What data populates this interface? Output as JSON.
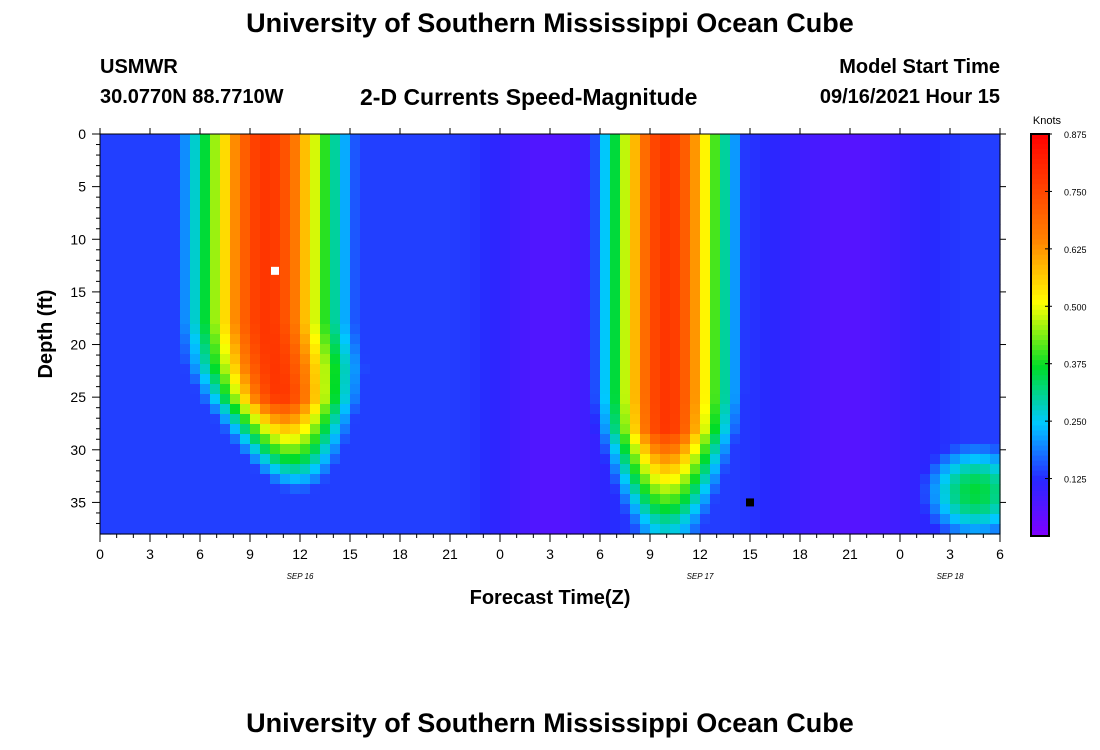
{
  "page": {
    "title_top": "University of Southern Mississippi Ocean Cube",
    "title_bottom": "University of Southern Mississippi Ocean Cube",
    "station": "USMWR",
    "coords": "30.0770N  88.7710W",
    "plot_title": "2-D Currents Speed-Magnitude",
    "start_label": "Model Start Time",
    "start_value": "09/16/2021 Hour 15"
  },
  "chart_data": {
    "type": "heatmap",
    "xlabel": "Forecast Time(Z)",
    "ylabel": "Depth (ft)",
    "x_tick_labels": [
      "0",
      "3",
      "6",
      "9",
      "12",
      "15",
      "18",
      "21",
      "0",
      "3",
      "6",
      "9",
      "12",
      "15",
      "18",
      "21",
      "0",
      "3",
      "6"
    ],
    "x_range_hours": [
      0,
      54
    ],
    "date_labels": [
      {
        "label": "SEP 16",
        "hour": 12
      },
      {
        "label": "SEP 17",
        "hour": 36
      },
      {
        "label": "SEP 18",
        "hour": 51
      }
    ],
    "y_ticks": [
      0,
      5,
      10,
      15,
      20,
      25,
      30,
      35
    ],
    "y_range": [
      0,
      38
    ],
    "y_inverted": true,
    "colorbar": {
      "title": "Knots",
      "min": 0,
      "max": 0.875,
      "ticks": [
        "0.125",
        "0.250",
        "0.375",
        "0.500",
        "0.625",
        "0.750",
        "0.875"
      ]
    },
    "markers": [
      {
        "name": "max",
        "hour": 10.5,
        "depth": 13,
        "color": "#ffffff"
      },
      {
        "name": "min",
        "hour": 39,
        "depth": 35,
        "color": "#000000"
      }
    ],
    "speed_field": {
      "centers_hours": [
        10,
        34,
        52.5
      ],
      "peaks_knots": [
        0.78,
        0.78,
        0.36
      ],
      "base_knots": 0.14
    }
  }
}
